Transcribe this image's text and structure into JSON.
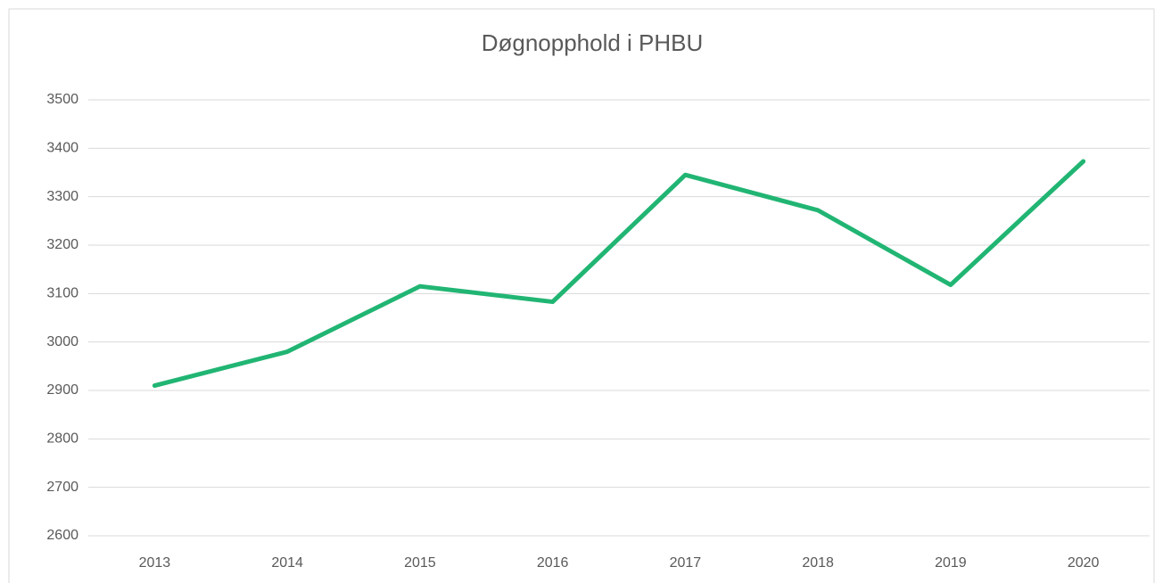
{
  "chart_data": {
    "type": "line",
    "title": "Døgnopphold i PHBU",
    "categories": [
      "2013",
      "2014",
      "2015",
      "2016",
      "2017",
      "2018",
      "2019",
      "2020"
    ],
    "series": [
      {
        "name": "Døgnopphold",
        "color": "#21b573",
        "values": [
          2910,
          2980,
          3115,
          3083,
          3345,
          3272,
          3118,
          3373
        ]
      }
    ],
    "ylim": [
      2600,
      3500
    ],
    "yticks": [
      2600,
      2700,
      2800,
      2900,
      3000,
      3100,
      3200,
      3300,
      3400,
      3500
    ],
    "grid": true,
    "legend": false
  }
}
